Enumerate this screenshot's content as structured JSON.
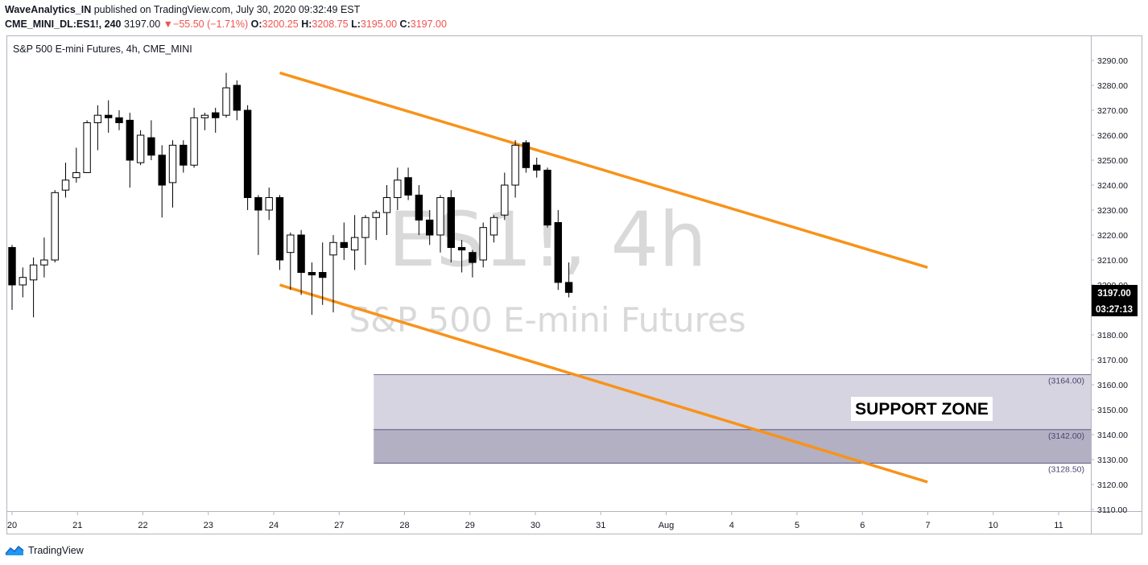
{
  "header": {
    "author": "WaveAnalytics_IN",
    "published_text": "published on TradingView.com, July 30, 2020 09:32:49 EST",
    "symbol": "CME_MINI_DL:ES1!, 240",
    "last": "3197.00",
    "change_arrow": "▼",
    "change": "−55.50 (−1.71%)",
    "o_label": "O:",
    "o_value": "3200.25",
    "h_label": "H:",
    "h_value": "3208.75",
    "l_label": "L:",
    "l_value": "3195.00",
    "c_label": "C:",
    "c_value": "3197.00"
  },
  "footer": {
    "brand": "TradingView",
    "logo_icon": "tradingview-logo-icon"
  },
  "colors": {
    "trendline": "#f7931a",
    "bull_fill": "#ffffff",
    "bear_fill": "#000000",
    "zone_upper": "#d6d4e0",
    "zone_lower": "#b3b0c4",
    "watermark": "#d9d9d9",
    "down_red": "#ef5350"
  },
  "chart_data": {
    "type": "candlestick",
    "title": "S&P 500 E-mini Futures, 4h, CME_MINI",
    "watermark": {
      "symbol": "ES1!, 4h",
      "name": "S&P 500 E-mini Futures"
    },
    "x_ticks": [
      "20",
      "21",
      "22",
      "23",
      "24",
      "27",
      "28",
      "29",
      "30",
      "31",
      "Aug",
      "4",
      "5",
      "6",
      "7",
      "10",
      "11"
    ],
    "y_ticks": [
      "3290.00",
      "3280.00",
      "3270.00",
      "3260.00",
      "3250.00",
      "3240.00",
      "3230.00",
      "3220.00",
      "3210.00",
      "3200.00",
      "3190.00",
      "3180.00",
      "3170.00",
      "3160.00",
      "3150.00",
      "3140.00",
      "3130.00",
      "3120.00",
      "3110.00"
    ],
    "ylim": [
      3107,
      3297
    ],
    "price_label": "3197.00",
    "countdown_label": "03:27:13",
    "support_zone": {
      "label": "SUPPORT ZONE",
      "levels": [
        "(3164.00)",
        "(3142.00)",
        "(3128.50)"
      ],
      "values": [
        3164.0,
        3142.0,
        3128.5
      ],
      "start_bar": 68
    },
    "trendlines": [
      {
        "name": "upper",
        "from": [
          50,
          3285
        ],
        "to": [
          171,
          3207
        ]
      },
      {
        "name": "lower",
        "from": [
          50,
          3200
        ],
        "to": [
          171,
          3121
        ]
      }
    ],
    "candles": [
      {
        "i": 0,
        "o": 3215,
        "h": 3216,
        "l": 3190,
        "c": 3200
      },
      {
        "i": 2,
        "o": 3200,
        "h": 3207,
        "l": 3195,
        "c": 3203
      },
      {
        "i": 4,
        "o": 3202,
        "h": 3211,
        "l": 3187,
        "c": 3208
      },
      {
        "i": 6,
        "o": 3208,
        "h": 3219,
        "l": 3203,
        "c": 3210
      },
      {
        "i": 8,
        "o": 3210,
        "h": 3238,
        "l": 3209,
        "c": 3237
      },
      {
        "i": 10,
        "o": 3238,
        "h": 3249,
        "l": 3235,
        "c": 3242
      },
      {
        "i": 12,
        "o": 3243,
        "h": 3255,
        "l": 3241,
        "c": 3245
      },
      {
        "i": 14,
        "o": 3245,
        "h": 3266,
        "l": 3245,
        "c": 3265
      },
      {
        "i": 16,
        "o": 3265,
        "h": 3272,
        "l": 3254,
        "c": 3268
      },
      {
        "i": 18,
        "o": 3268,
        "h": 3274,
        "l": 3261,
        "c": 3267
      },
      {
        "i": 20,
        "o": 3267,
        "h": 3270,
        "l": 3262,
        "c": 3265
      },
      {
        "i": 22,
        "o": 3266,
        "h": 3269,
        "l": 3239,
        "c": 3250
      },
      {
        "i": 24,
        "o": 3249,
        "h": 3262,
        "l": 3248,
        "c": 3260
      },
      {
        "i": 26,
        "o": 3259,
        "h": 3266,
        "l": 3250,
        "c": 3252
      },
      {
        "i": 28,
        "o": 3252,
        "h": 3256,
        "l": 3227,
        "c": 3240
      },
      {
        "i": 30,
        "o": 3241,
        "h": 3258,
        "l": 3231,
        "c": 3256
      },
      {
        "i": 32,
        "o": 3256,
        "h": 3258,
        "l": 3245,
        "c": 3248
      },
      {
        "i": 34,
        "o": 3248,
        "h": 3271,
        "l": 3247,
        "c": 3267
      },
      {
        "i": 36,
        "o": 3267,
        "h": 3269,
        "l": 3262,
        "c": 3268
      },
      {
        "i": 38,
        "o": 3269,
        "h": 3271,
        "l": 3261,
        "c": 3267
      },
      {
        "i": 40,
        "o": 3268,
        "h": 3285,
        "l": 3267,
        "c": 3279
      },
      {
        "i": 42,
        "o": 3280,
        "h": 3282,
        "l": 3266,
        "c": 3270
      },
      {
        "i": 44,
        "o": 3270,
        "h": 3272,
        "l": 3230,
        "c": 3235
      },
      {
        "i": 46,
        "o": 3235,
        "h": 3236,
        "l": 3212,
        "c": 3230
      },
      {
        "i": 48,
        "o": 3230,
        "h": 3239,
        "l": 3226,
        "c": 3235
      },
      {
        "i": 50,
        "o": 3235,
        "h": 3236,
        "l": 3206,
        "c": 3210
      },
      {
        "i": 52,
        "o": 3213,
        "h": 3221,
        "l": 3198,
        "c": 3220
      },
      {
        "i": 54,
        "o": 3220,
        "h": 3222,
        "l": 3196,
        "c": 3205
      },
      {
        "i": 56,
        "o": 3205,
        "h": 3209,
        "l": 3188,
        "c": 3204
      },
      {
        "i": 58,
        "o": 3205,
        "h": 3217,
        "l": 3192,
        "c": 3203
      },
      {
        "i": 60,
        "o": 3212,
        "h": 3220,
        "l": 3189,
        "c": 3217
      },
      {
        "i": 62,
        "o": 3217,
        "h": 3225,
        "l": 3210,
        "c": 3215
      },
      {
        "i": 64,
        "o": 3214,
        "h": 3228,
        "l": 3206,
        "c": 3219
      },
      {
        "i": 66,
        "o": 3219,
        "h": 3228,
        "l": 3208,
        "c": 3227
      },
      {
        "i": 68,
        "o": 3227,
        "h": 3230,
        "l": 3218,
        "c": 3229
      },
      {
        "i": 70,
        "o": 3229,
        "h": 3240,
        "l": 3220,
        "c": 3235
      },
      {
        "i": 72,
        "o": 3235,
        "h": 3247,
        "l": 3230,
        "c": 3242
      },
      {
        "i": 74,
        "o": 3243,
        "h": 3247,
        "l": 3234,
        "c": 3236
      },
      {
        "i": 76,
        "o": 3236,
        "h": 3240,
        "l": 3220,
        "c": 3226
      },
      {
        "i": 78,
        "o": 3226,
        "h": 3230,
        "l": 3216,
        "c": 3220
      },
      {
        "i": 80,
        "o": 3220,
        "h": 3236,
        "l": 3213,
        "c": 3235
      },
      {
        "i": 82,
        "o": 3235,
        "h": 3238,
        "l": 3209,
        "c": 3215
      },
      {
        "i": 84,
        "o": 3215,
        "h": 3218,
        "l": 3205,
        "c": 3214
      },
      {
        "i": 86,
        "o": 3213,
        "h": 3214,
        "l": 3203,
        "c": 3209
      },
      {
        "i": 88,
        "o": 3210,
        "h": 3225,
        "l": 3207,
        "c": 3223
      },
      {
        "i": 90,
        "o": 3220,
        "h": 3228,
        "l": 3217,
        "c": 3227
      },
      {
        "i": 92,
        "o": 3228,
        "h": 3245,
        "l": 3226,
        "c": 3240
      },
      {
        "i": 94,
        "o": 3240,
        "h": 3258,
        "l": 3235,
        "c": 3256
      },
      {
        "i": 96,
        "o": 3257,
        "h": 3258,
        "l": 3245,
        "c": 3247
      },
      {
        "i": 98,
        "o": 3248,
        "h": 3251,
        "l": 3243,
        "c": 3246
      },
      {
        "i": 100,
        "o": 3246,
        "h": 3247,
        "l": 3223,
        "c": 3224
      },
      {
        "i": 102,
        "o": 3225,
        "h": 3230,
        "l": 3198,
        "c": 3201
      },
      {
        "i": 104,
        "o": 3201,
        "h": 3209,
        "l": 3195,
        "c": 3197
      }
    ]
  }
}
